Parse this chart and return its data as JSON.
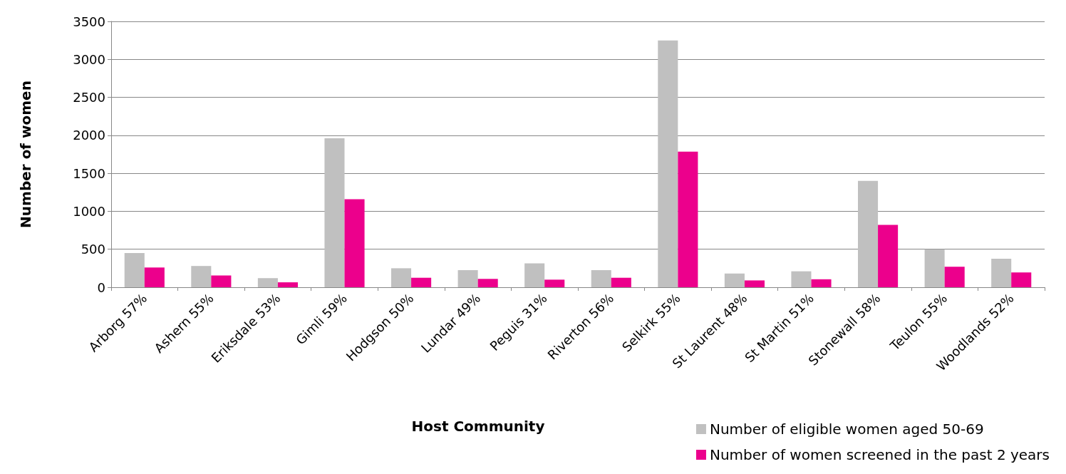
{
  "chart_data": {
    "type": "bar",
    "xlabel": "Host Community",
    "ylabel": "Number of women",
    "categories": [
      "Arborg 57%",
      "Ashern 55%",
      "Eriksdale 53%",
      "Gimli 59%",
      "Hodgson 50%",
      "Lundar 49%",
      "Peguis 31%",
      "Riverton 56%",
      "Selkirk 55%",
      "St Laurent 48%",
      "St Martin 51%",
      "Stonewall 58%",
      "Teulon 55%",
      "Woodlands 52%"
    ],
    "series": [
      {
        "name": "Number of eligible women aged 50-69",
        "color": "#c0c0c0",
        "values": [
          450,
          280,
          120,
          1960,
          250,
          225,
          315,
          225,
          3250,
          180,
          210,
          1400,
          500,
          375
        ]
      },
      {
        "name": "Number of women screened in the past 2 years",
        "color": "#ec008c",
        "values": [
          260,
          155,
          65,
          1160,
          125,
          110,
          100,
          125,
          1785,
          90,
          105,
          820,
          270,
          195
        ]
      }
    ],
    "ylim": [
      0,
      3500
    ],
    "yticks": [
      0,
      500,
      1000,
      1500,
      2000,
      2500,
      3000,
      3500
    ],
    "grid": "y",
    "legend": "bottom right"
  }
}
